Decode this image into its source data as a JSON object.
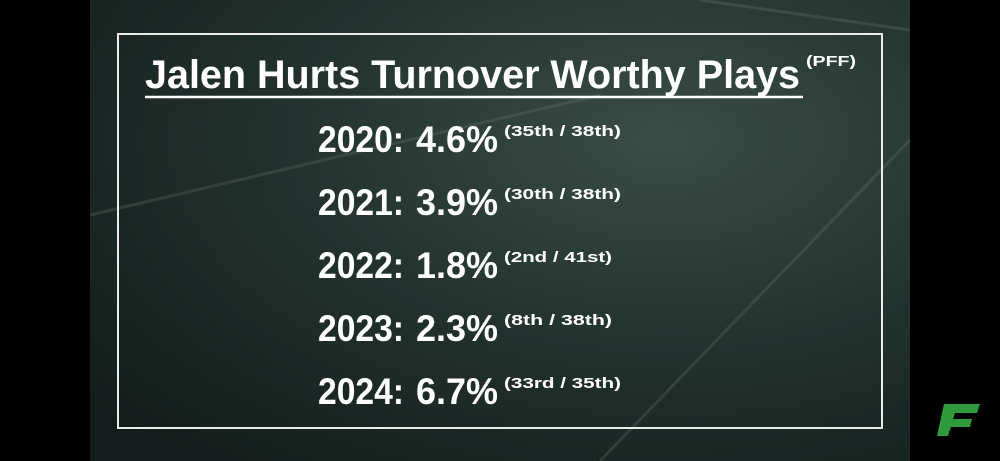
{
  "header": {
    "title": "Jalen Hurts Turnover Worthy Plays",
    "source": "(PFF)"
  },
  "rows": [
    {
      "year": "2020:",
      "value": "4.6%",
      "rank": "(35th / 38th)"
    },
    {
      "year": "2021:",
      "value": "3.9%",
      "rank": "(30th / 38th)"
    },
    {
      "year": "2022:",
      "value": "1.8%",
      "rank": "(2nd / 41st)"
    },
    {
      "year": "2023:",
      "value": "2.3%",
      "rank": "(8th / 38th)"
    },
    {
      "year": "2024:",
      "value": "6.7%",
      "rank": "(33rd / 35th)"
    }
  ]
}
